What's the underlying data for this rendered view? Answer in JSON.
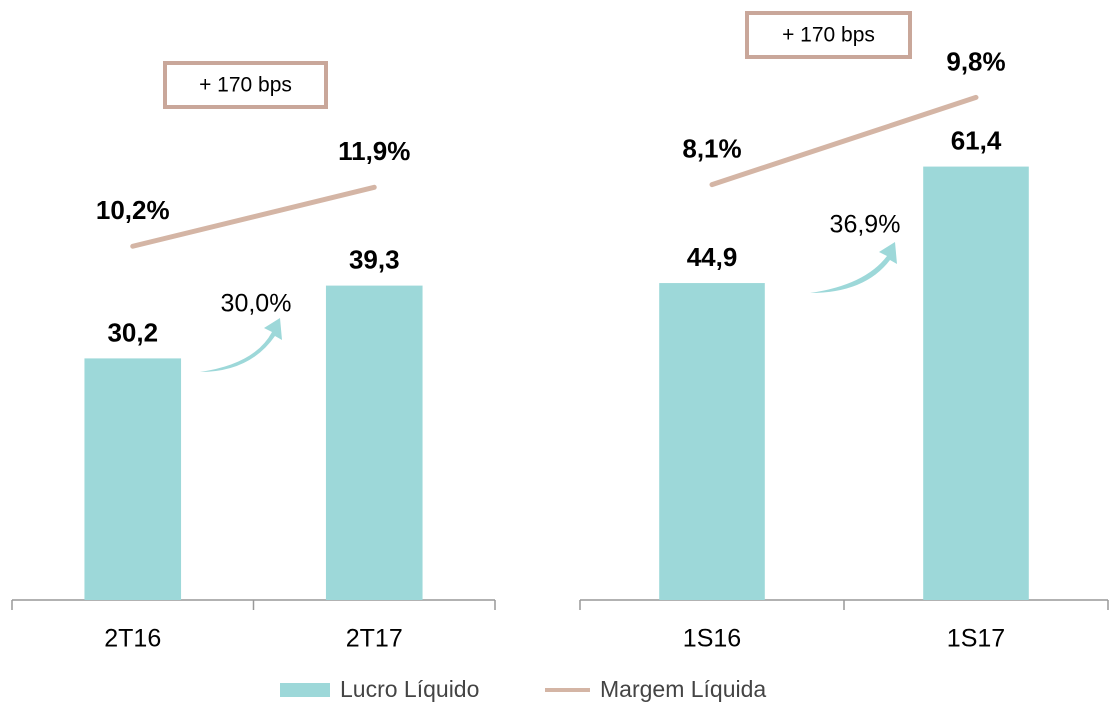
{
  "chart_data": [
    {
      "type": "bar",
      "categories": [
        "2T16",
        "2T17"
      ],
      "series": [
        {
          "name": "Lucro Líquido",
          "color": "#9dd8d9",
          "values": [
            30.2,
            39.3
          ],
          "value_labels": [
            "30,2",
            "39,3"
          ]
        },
        {
          "name": "Margem Líquida",
          "color": "#d4b5a5",
          "type": "line",
          "axis": "y2",
          "values": [
            10.2,
            11.9
          ],
          "value_labels": [
            "10,2%",
            "11,9%"
          ]
        }
      ],
      "ylim": [
        0,
        75
      ],
      "y2lim": [
        0,
        17.3
      ],
      "annotations": [
        "+ 170 bps",
        "30,0%"
      ]
    },
    {
      "type": "bar",
      "categories": [
        "1S16",
        "1S17"
      ],
      "series": [
        {
          "name": "Lucro Líquido",
          "color": "#9dd8d9",
          "values": [
            44.9,
            61.4
          ],
          "value_labels": [
            "44,9",
            "61,4"
          ]
        },
        {
          "name": "Margem Líquida",
          "color": "#d4b5a5",
          "type": "line",
          "axis": "y2",
          "values": [
            8.1,
            9.8
          ],
          "value_labels": [
            "8,1%",
            "9,8%"
          ]
        }
      ],
      "ylim": [
        0,
        85
      ],
      "y2lim": [
        0,
        11.7
      ],
      "annotations": [
        "+ 170 bps",
        "36,9%"
      ]
    }
  ]
}
